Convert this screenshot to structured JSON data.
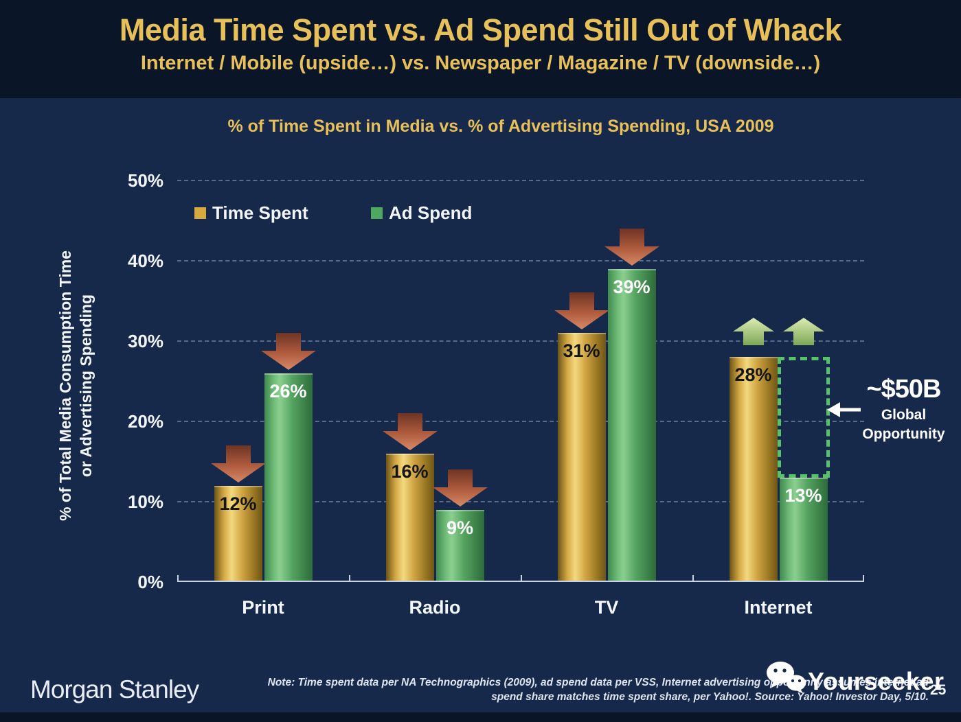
{
  "header": {
    "title": "Media Time Spent vs. Ad Spend Still Out of Whack",
    "subtitle": "Internet / Mobile (upside…) vs. Newspaper / Magazine / TV (downside…)"
  },
  "chart": {
    "title": "% of Time Spent in Media vs. % of Advertising Spending, USA 2009",
    "y_axis_label": {
      "line1": "% of Total Media Consumption Time",
      "line2": "or Advertising Spending"
    },
    "y_ticks": [
      "50%",
      "40%",
      "30%",
      "20%",
      "10%",
      "0%"
    ],
    "legend": [
      {
        "label": "Time Spent",
        "color": "#d7a93f"
      },
      {
        "label": "Ad Spend",
        "color": "#4fa85f"
      }
    ]
  },
  "chart_data": {
    "type": "bar",
    "title": "% of Time Spent in Media vs. % of Advertising Spending, USA 2009",
    "categories": [
      "Print",
      "Radio",
      "TV",
      "Internet"
    ],
    "series": [
      {
        "name": "Time Spent",
        "color": "#d7a93f",
        "values": [
          12,
          16,
          31,
          28
        ]
      },
      {
        "name": "Ad Spend",
        "color": "#4fa85f",
        "values": [
          26,
          9,
          39,
          13
        ]
      }
    ],
    "xlabel": "",
    "ylabel": "% of Total Media Consumption Time or Advertising Spending",
    "ylim": [
      0,
      50
    ],
    "ytick_interval": 10,
    "grid": true,
    "legend_position": "top-left",
    "arrows": [
      [
        "down",
        "down"
      ],
      [
        "down",
        "down"
      ],
      [
        "down",
        "down"
      ],
      [
        "up",
        "up"
      ]
    ],
    "arrow_colors": {
      "down": "#c06a48",
      "up": "#a9cc7d"
    },
    "opportunity_box": {
      "category": "Internet",
      "series": "Ad Spend",
      "from_pct": 13,
      "to_pct": 28,
      "color": "#57c26a"
    }
  },
  "annotation": {
    "headline": "~$50B",
    "line1": "Global",
    "line2": "Opportunity"
  },
  "footer": {
    "logo_text": "Morgan Stanley",
    "note_line1": "Note: Time spent data per NA Technographics (2009), ad spend data per VSS, Internet advertising opportunity assumes internet ad",
    "note_line2": "spend share matches time spent share, per Yahoo!. Source: Yahoo! Investor Day, 5/10.",
    "watermark_text": "Yourseeker",
    "page_number": "25"
  }
}
